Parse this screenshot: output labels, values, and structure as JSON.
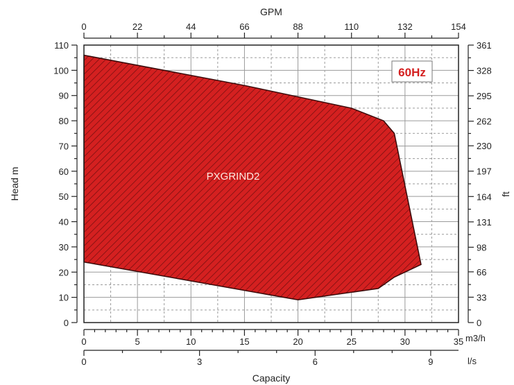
{
  "chart_data": {
    "type": "area",
    "title": "",
    "xlabel": "Capacity",
    "ylabel": "Head m",
    "secondary_ylabel": "ft",
    "top_xlabel": "GPM",
    "x_unit_labels": [
      "m3/h",
      "l/s"
    ],
    "xlim": [
      0,
      35
    ],
    "ylim": [
      0,
      110
    ],
    "grid": true,
    "x_ticks_m3h": [
      "0",
      "5",
      "10",
      "15",
      "20",
      "25",
      "30",
      "35"
    ],
    "x_ticks_ls": [
      "0",
      "3",
      "6",
      "9"
    ],
    "x_ticks_gpm": [
      "0",
      "22",
      "44",
      "66",
      "88",
      "110",
      "132",
      "154"
    ],
    "y_ticks_m": [
      "0",
      "10",
      "20",
      "30",
      "40",
      "50",
      "60",
      "70",
      "80",
      "90",
      "100",
      "110"
    ],
    "y_ticks_ft": [
      "0",
      "33",
      "66",
      "98",
      "131",
      "164",
      "197",
      "230",
      "262",
      "295",
      "328",
      "361"
    ],
    "series": [
      {
        "name": "PXGRIND2",
        "color": "#d42020",
        "polygon": [
          {
            "x": 0,
            "y": 106
          },
          {
            "x": 15,
            "y": 94
          },
          {
            "x": 25,
            "y": 85
          },
          {
            "x": 28,
            "y": 80
          },
          {
            "x": 29,
            "y": 75
          },
          {
            "x": 31.5,
            "y": 23
          },
          {
            "x": 29,
            "y": 18
          },
          {
            "x": 27.5,
            "y": 13.5
          },
          {
            "x": 20,
            "y": 9
          },
          {
            "x": 0,
            "y": 24
          }
        ]
      }
    ],
    "annotations": [
      {
        "text": "60Hz",
        "color": "#d42020",
        "position": "top-right"
      }
    ]
  }
}
